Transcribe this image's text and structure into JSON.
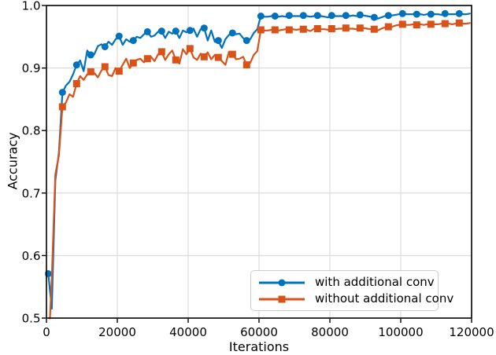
{
  "chart_data": {
    "type": "line",
    "title": "",
    "xlabel": "Iterations",
    "ylabel": "Accuracy",
    "xlim": [
      0,
      120000
    ],
    "ylim": [
      0.5,
      1.0
    ],
    "x_ticks": [
      0,
      20000,
      40000,
      60000,
      80000,
      100000,
      120000
    ],
    "x_tick_labels": [
      "0",
      "20000",
      "40000",
      "60000",
      "80000",
      "100000",
      "120000"
    ],
    "y_ticks": [
      0.5,
      0.6,
      0.7,
      0.8,
      0.9,
      1.0
    ],
    "y_tick_labels": [
      "0.5",
      "0.6",
      "0.7",
      "0.8",
      "0.9",
      "1.0"
    ],
    "grid": true,
    "grid_color": "#d9d9d9",
    "axis_color": "#000000",
    "legend": {
      "position": "lower right",
      "border_color": "#cccccc"
    },
    "x": [
      500,
      1500,
      2500,
      3500,
      4500,
      5500,
      6500,
      7500,
      8500,
      9500,
      10500,
      11500,
      12500,
      13500,
      14500,
      15500,
      16500,
      17500,
      18500,
      19500,
      20500,
      21500,
      22500,
      23500,
      24500,
      25500,
      26500,
      27500,
      28500,
      29500,
      30500,
      31500,
      32500,
      33500,
      34500,
      35500,
      36500,
      37500,
      38500,
      39500,
      40500,
      41500,
      42500,
      43500,
      44500,
      45500,
      46500,
      47500,
      48500,
      49500,
      50500,
      51500,
      52500,
      53500,
      54500,
      55500,
      56500,
      57500,
      58500,
      59500,
      60500,
      61500,
      62500,
      63500,
      64500,
      65500,
      66500,
      67500,
      68500,
      69500,
      70500,
      71500,
      72500,
      73500,
      74500,
      75500,
      76500,
      77500,
      78500,
      79500,
      80500,
      81500,
      82500,
      83500,
      84500,
      85500,
      86500,
      87500,
      88500,
      89500,
      90500,
      91500,
      92500,
      93500,
      94500,
      95500,
      96500,
      97500,
      98500,
      99500,
      100500,
      101500,
      102500,
      103500,
      104500,
      105500,
      106500,
      107500,
      108500,
      109500,
      110500,
      111500,
      112500,
      113500,
      114500,
      115500,
      116500,
      117500,
      118500,
      119500
    ],
    "series": [
      {
        "name": "with additional conv",
        "color": "#0072BD",
        "marker": "circle",
        "marker_every": 4,
        "values": [
          0.571,
          0.515,
          0.72,
          0.765,
          0.861,
          0.872,
          0.878,
          0.89,
          0.905,
          0.912,
          0.895,
          0.928,
          0.921,
          0.922,
          0.935,
          0.938,
          0.934,
          0.942,
          0.937,
          0.946,
          0.951,
          0.937,
          0.946,
          0.942,
          0.944,
          0.95,
          0.948,
          0.954,
          0.958,
          0.95,
          0.952,
          0.958,
          0.959,
          0.948,
          0.958,
          0.955,
          0.959,
          0.948,
          0.96,
          0.957,
          0.96,
          0.963,
          0.95,
          0.962,
          0.964,
          0.944,
          0.96,
          0.942,
          0.944,
          0.932,
          0.946,
          0.953,
          0.956,
          0.954,
          0.955,
          0.948,
          0.944,
          0.946,
          0.956,
          0.962,
          0.983,
          0.982,
          0.982,
          0.983,
          0.983,
          0.982,
          0.983,
          0.982,
          0.984,
          0.983,
          0.983,
          0.983,
          0.984,
          0.983,
          0.982,
          0.983,
          0.984,
          0.983,
          0.982,
          0.981,
          0.984,
          0.983,
          0.983,
          0.983,
          0.984,
          0.983,
          0.984,
          0.983,
          0.985,
          0.984,
          0.983,
          0.982,
          0.981,
          0.979,
          0.981,
          0.983,
          0.984,
          0.984,
          0.985,
          0.986,
          0.987,
          0.986,
          0.986,
          0.986,
          0.986,
          0.986,
          0.985,
          0.986,
          0.986,
          0.986,
          0.986,
          0.985,
          0.987,
          0.986,
          0.986,
          0.986,
          0.987,
          0.986,
          0.986,
          0.987
        ]
      },
      {
        "name": "without additional conv",
        "color": "#D95319",
        "marker": "square",
        "marker_every": 4,
        "values": [
          0.44,
          0.565,
          0.73,
          0.76,
          0.838,
          0.845,
          0.858,
          0.854,
          0.875,
          0.887,
          0.881,
          0.89,
          0.894,
          0.892,
          0.885,
          0.896,
          0.902,
          0.889,
          0.887,
          0.9,
          0.895,
          0.905,
          0.915,
          0.9,
          0.908,
          0.913,
          0.915,
          0.909,
          0.915,
          0.918,
          0.911,
          0.922,
          0.926,
          0.913,
          0.922,
          0.928,
          0.913,
          0.907,
          0.93,
          0.922,
          0.931,
          0.917,
          0.913,
          0.923,
          0.918,
          0.925,
          0.914,
          0.921,
          0.917,
          0.911,
          0.905,
          0.926,
          0.922,
          0.914,
          0.915,
          0.918,
          0.905,
          0.908,
          0.921,
          0.927,
          0.961,
          0.96,
          0.96,
          0.961,
          0.961,
          0.96,
          0.961,
          0.962,
          0.961,
          0.962,
          0.961,
          0.962,
          0.962,
          0.961,
          0.959,
          0.963,
          0.963,
          0.962,
          0.962,
          0.961,
          0.963,
          0.962,
          0.963,
          0.963,
          0.964,
          0.963,
          0.963,
          0.962,
          0.964,
          0.964,
          0.963,
          0.962,
          0.962,
          0.96,
          0.963,
          0.965,
          0.966,
          0.966,
          0.968,
          0.969,
          0.97,
          0.969,
          0.969,
          0.97,
          0.969,
          0.97,
          0.969,
          0.97,
          0.97,
          0.97,
          0.97,
          0.971,
          0.971,
          0.971,
          0.97,
          0.971,
          0.972,
          0.971,
          0.971,
          0.972
        ]
      }
    ]
  }
}
